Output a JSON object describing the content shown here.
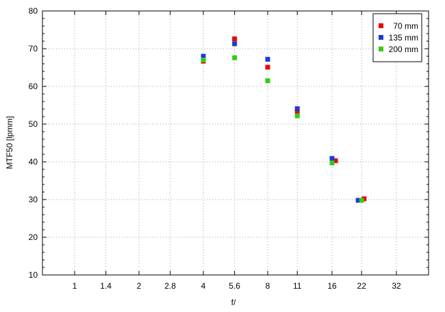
{
  "chart_data": {
    "type": "scatter",
    "xlabel": "f/",
    "ylabel": "MTF50 [lpmm]",
    "x_scale": "log2",
    "x_ticks": [
      {
        "value": 1,
        "label": "1"
      },
      {
        "value": 1.4,
        "label": "1.4"
      },
      {
        "value": 2,
        "label": "2"
      },
      {
        "value": 2.8,
        "label": "2.8"
      },
      {
        "value": 4,
        "label": "4"
      },
      {
        "value": 5.6,
        "label": "5.6"
      },
      {
        "value": 8,
        "label": "8"
      },
      {
        "value": 11,
        "label": "11"
      },
      {
        "value": 16,
        "label": "16"
      },
      {
        "value": 22,
        "label": "22"
      },
      {
        "value": 32,
        "label": "32"
      }
    ],
    "xlim": [
      0.707,
      45.25
    ],
    "ylim": [
      10,
      80
    ],
    "y_ticks": [
      10,
      20,
      30,
      40,
      50,
      60,
      70,
      80
    ],
    "grid": true,
    "legend_position": "top-right",
    "series": [
      {
        "name": "70 mm",
        "color": "#e8070a",
        "points": [
          [
            4,
            66.7
          ],
          [
            5.6,
            72.6
          ],
          [
            8,
            65.1
          ],
          [
            11,
            53.2
          ],
          [
            16.6,
            40.3
          ],
          [
            22.6,
            30.2
          ]
        ]
      },
      {
        "name": "135 mm",
        "color": "#1c3bd9",
        "points": [
          [
            4,
            68.0
          ],
          [
            5.6,
            71.3
          ],
          [
            8,
            67.2
          ],
          [
            11,
            54.1
          ],
          [
            16,
            40.9
          ],
          [
            21.2,
            29.8
          ]
        ]
      },
      {
        "name": "200 mm",
        "color": "#33cc11",
        "points": [
          [
            4,
            67.0
          ],
          [
            5.6,
            67.6
          ],
          [
            8,
            61.5
          ],
          [
            11,
            52.2
          ],
          [
            16,
            39.7
          ],
          [
            22,
            29.8
          ]
        ]
      }
    ]
  }
}
